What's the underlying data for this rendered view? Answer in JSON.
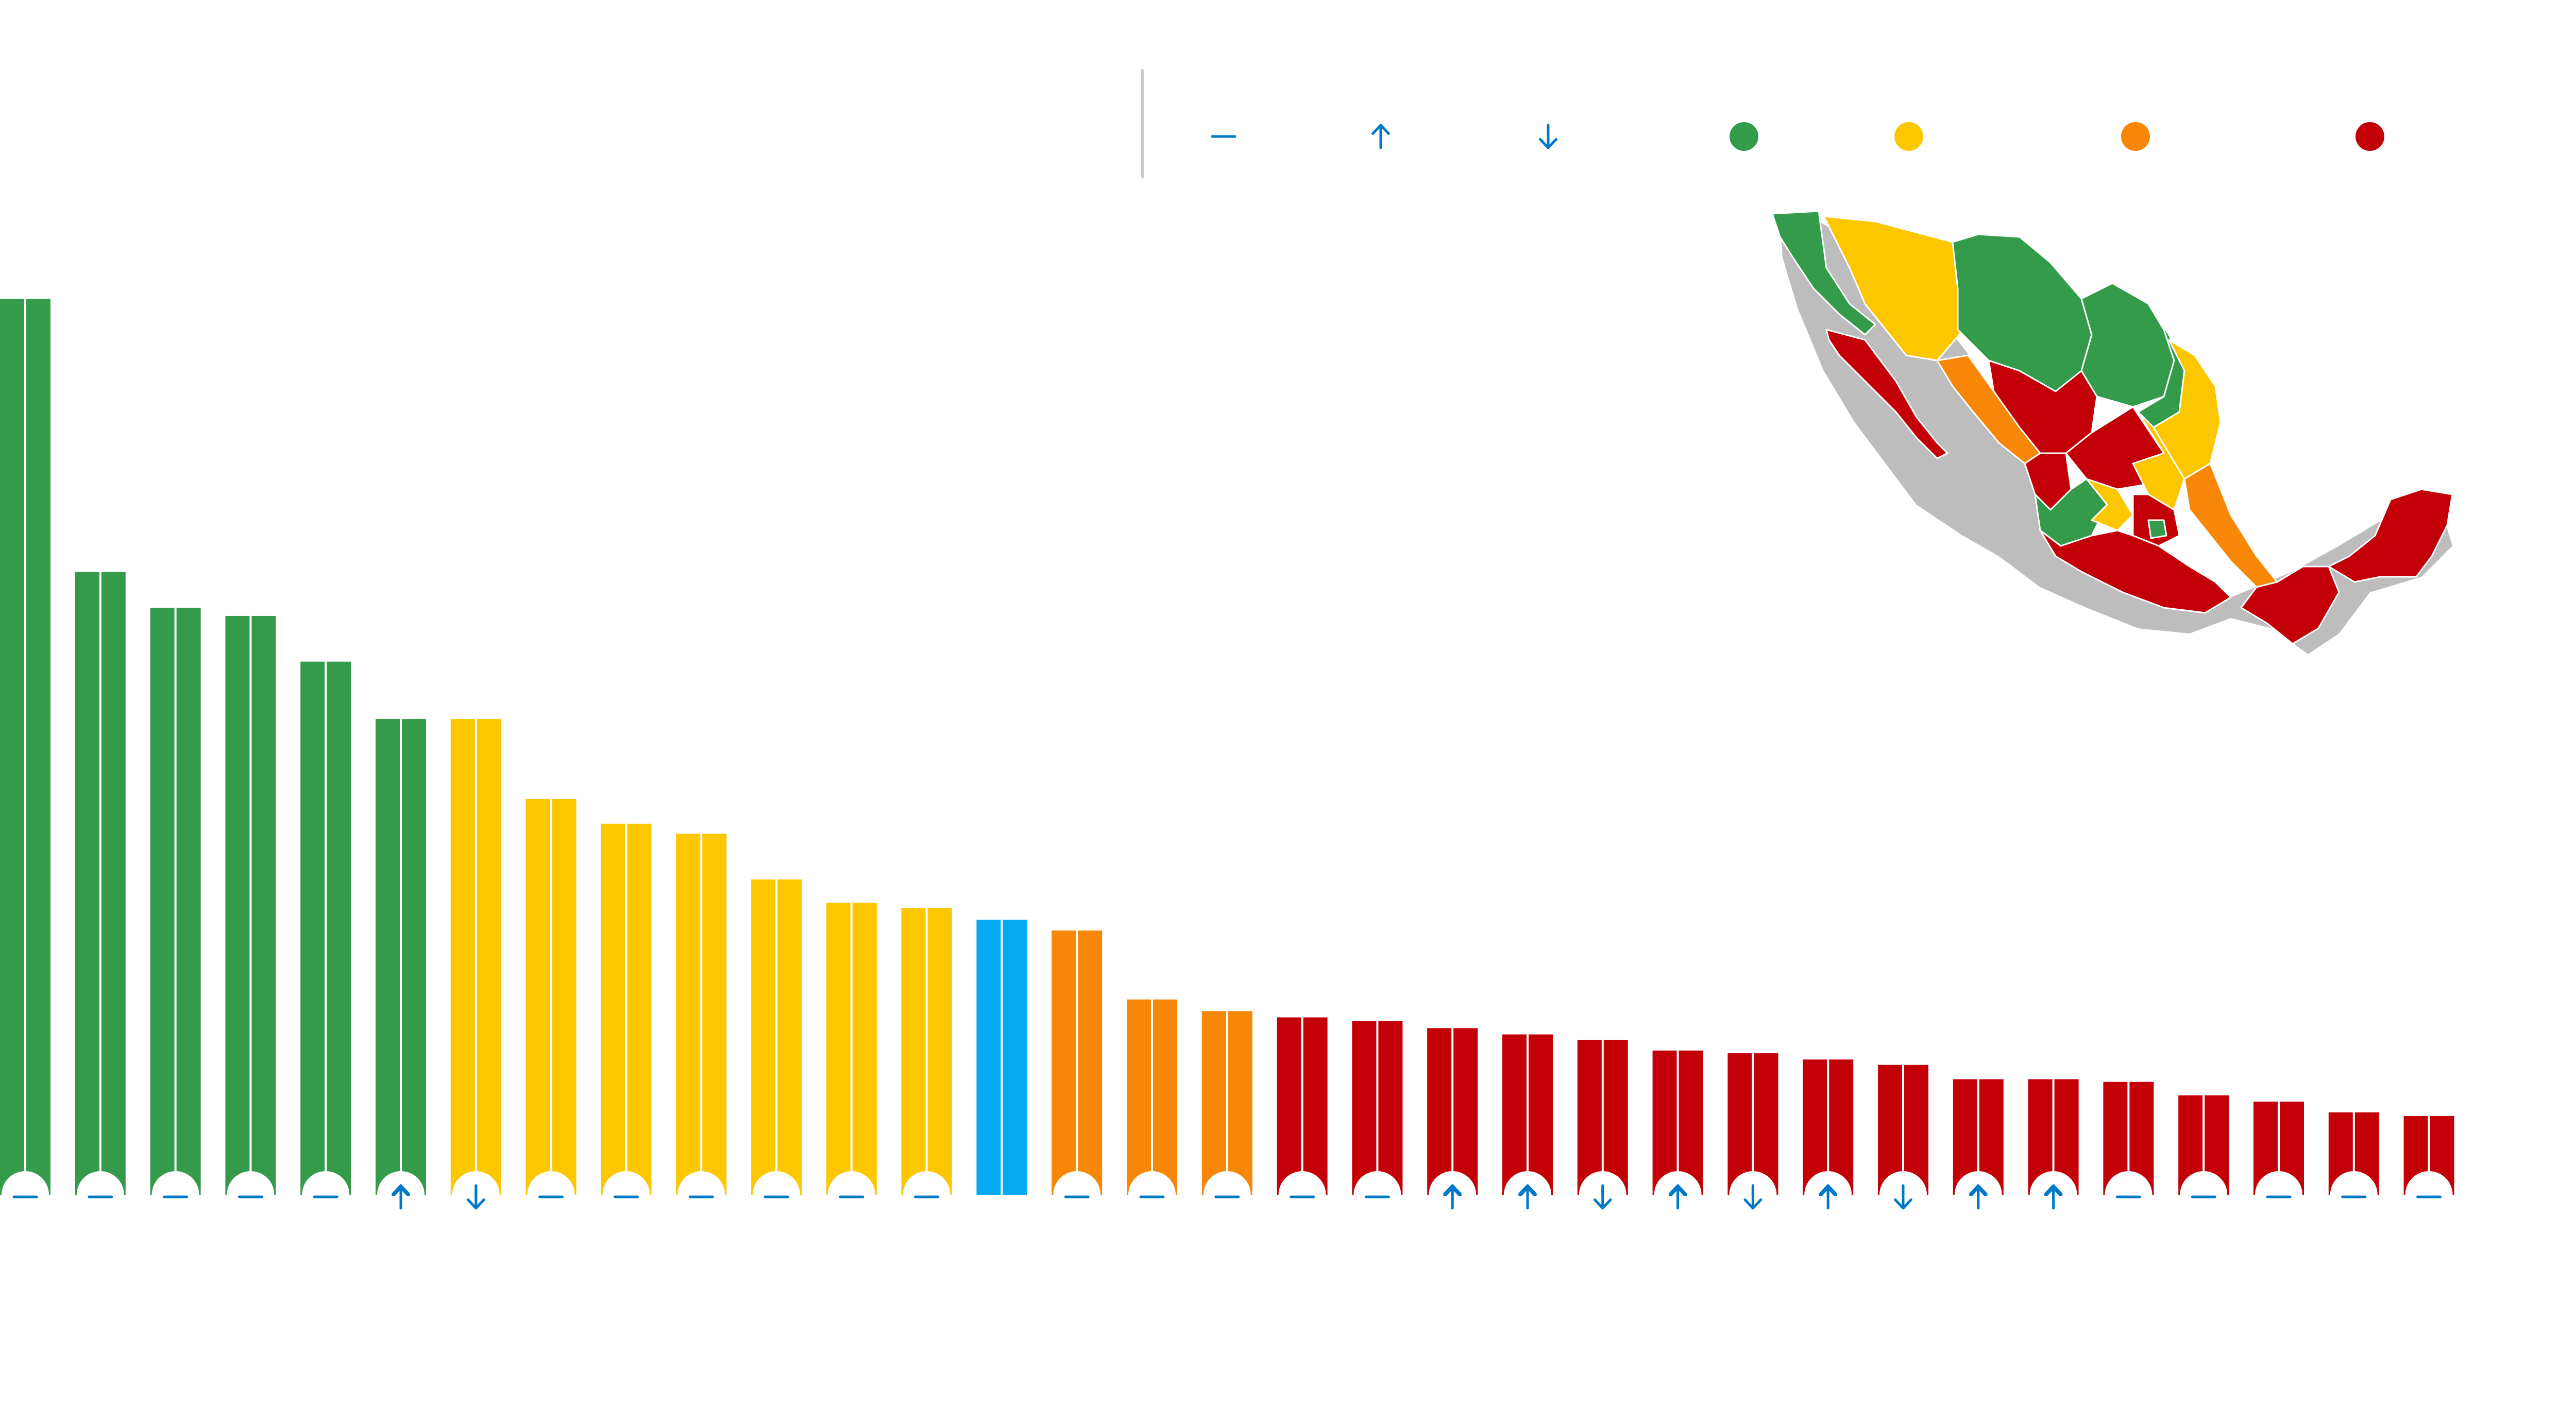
{
  "legend": {
    "trend": [
      {
        "name": "legend-trend-same-icon",
        "icon": "dash-icon"
      },
      {
        "name": "legend-trend-up-icon",
        "icon": "arrow-up-icon"
      },
      {
        "name": "legend-trend-down-icon",
        "icon": "arrow-down-icon"
      }
    ],
    "levels": [
      {
        "name": "legend-dot-green",
        "color": "#339b4a"
      },
      {
        "name": "legend-dot-yellow",
        "color": "#fdc700"
      },
      {
        "name": "legend-dot-orange",
        "color": "#f88707"
      },
      {
        "name": "legend-dot-red",
        "color": "#c30007"
      }
    ]
  },
  "colors": {
    "green": "#339b4a",
    "yellow": "#fdc700",
    "orange": "#f88707",
    "red": "#c30007",
    "highlight": "#05aaf0",
    "trend_icon": "#0078c8",
    "axis_divider": "#c8c8c8"
  },
  "chart_data": {
    "type": "bar",
    "ylim": [
      0,
      100
    ],
    "grid": false,
    "values": [
      100,
      69.5,
      65.5,
      64.6,
      59.5,
      53.1,
      53.1,
      44.2,
      41.4,
      40.3,
      35.2,
      32.6,
      32.0,
      30.7,
      29.5,
      21.8,
      20.5,
      19.8,
      19.4,
      18.6,
      17.9,
      17.3,
      16.1,
      15.8,
      15.1,
      14.5,
      12.9,
      12.9,
      12.6,
      11.1,
      10.4,
      9.2,
      8.8
    ],
    "level_colors": [
      "green",
      "green",
      "green",
      "green",
      "green",
      "green",
      "yellow",
      "yellow",
      "yellow",
      "yellow",
      "yellow",
      "yellow",
      "yellow",
      "highlight",
      "orange",
      "orange",
      "orange",
      "red",
      "red",
      "red",
      "red",
      "red",
      "red",
      "red",
      "red",
      "red",
      "red",
      "red",
      "red",
      "red",
      "red",
      "red",
      "red"
    ],
    "trend": [
      "same",
      "same",
      "same",
      "same",
      "same",
      "up",
      "down",
      "same",
      "same",
      "same",
      "same",
      "same",
      "same",
      "none",
      "same",
      "same",
      "same",
      "same",
      "same",
      "up",
      "up",
      "down",
      "up",
      "down",
      "up",
      "down",
      "up",
      "up",
      "same",
      "same",
      "same",
      "same",
      "same"
    ]
  },
  "map": {
    "icon": "mexico-map-icon"
  }
}
